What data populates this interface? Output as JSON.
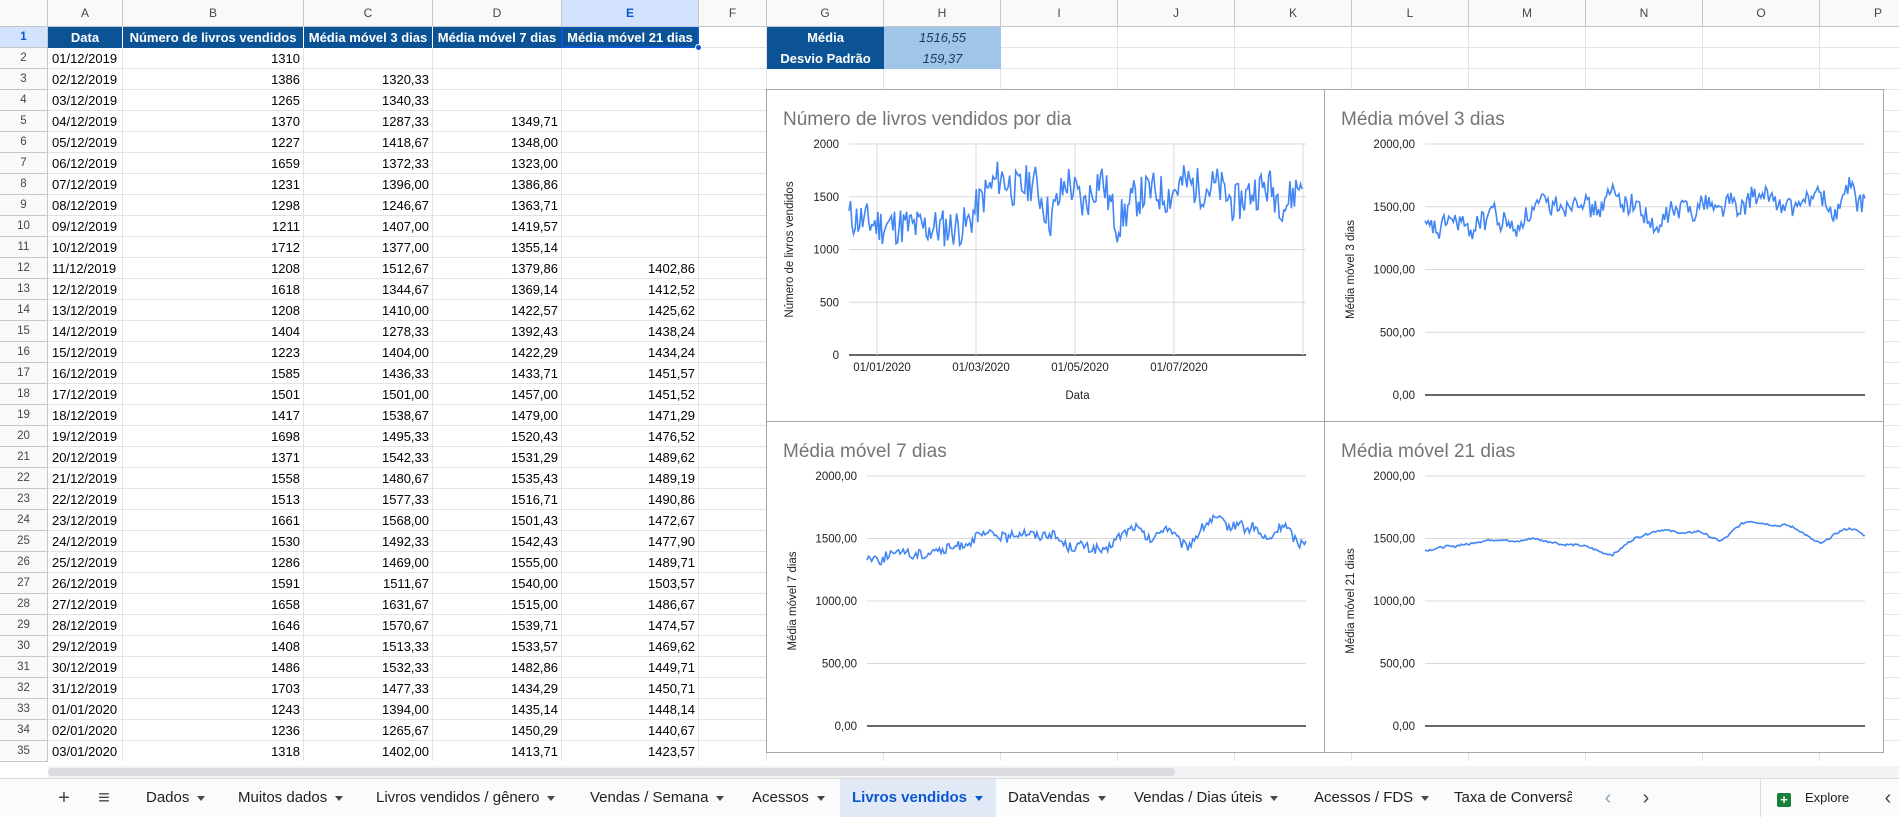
{
  "columns": [
    "A",
    "B",
    "C",
    "D",
    "E",
    "F",
    "G",
    "H",
    "I",
    "J",
    "K",
    "L",
    "M",
    "N",
    "O",
    "P"
  ],
  "selected_column": "E",
  "selected_row": "1",
  "headers": [
    "Data",
    "Número de livros vendidos",
    "Média móvel 3 dias",
    "Média móvel 7 dias",
    "Média móvel 21 dias"
  ],
  "rows": [
    [
      "01/12/2019",
      "1310",
      "",
      "",
      ""
    ],
    [
      "02/12/2019",
      "1386",
      "1320,33",
      "",
      ""
    ],
    [
      "03/12/2019",
      "1265",
      "1340,33",
      "",
      ""
    ],
    [
      "04/12/2019",
      "1370",
      "1287,33",
      "1349,71",
      ""
    ],
    [
      "05/12/2019",
      "1227",
      "1418,67",
      "1348,00",
      ""
    ],
    [
      "06/12/2019",
      "1659",
      "1372,33",
      "1323,00",
      ""
    ],
    [
      "07/12/2019",
      "1231",
      "1396,00",
      "1386,86",
      ""
    ],
    [
      "08/12/2019",
      "1298",
      "1246,67",
      "1363,71",
      ""
    ],
    [
      "09/12/2019",
      "1211",
      "1407,00",
      "1419,57",
      ""
    ],
    [
      "10/12/2019",
      "1712",
      "1377,00",
      "1355,14",
      ""
    ],
    [
      "11/12/2019",
      "1208",
      "1512,67",
      "1379,86",
      "1402,86"
    ],
    [
      "12/12/2019",
      "1618",
      "1344,67",
      "1369,14",
      "1412,52"
    ],
    [
      "13/12/2019",
      "1208",
      "1410,00",
      "1422,57",
      "1425,62"
    ],
    [
      "14/12/2019",
      "1404",
      "1278,33",
      "1392,43",
      "1438,24"
    ],
    [
      "15/12/2019",
      "1223",
      "1404,00",
      "1422,29",
      "1434,24"
    ],
    [
      "16/12/2019",
      "1585",
      "1436,33",
      "1433,71",
      "1451,57"
    ],
    [
      "17/12/2019",
      "1501",
      "1501,00",
      "1457,00",
      "1451,52"
    ],
    [
      "18/12/2019",
      "1417",
      "1538,67",
      "1479,00",
      "1471,29"
    ],
    [
      "19/12/2019",
      "1698",
      "1495,33",
      "1520,43",
      "1476,52"
    ],
    [
      "20/12/2019",
      "1371",
      "1542,33",
      "1531,29",
      "1489,62"
    ],
    [
      "21/12/2019",
      "1558",
      "1480,67",
      "1535,43",
      "1489,19"
    ],
    [
      "22/12/2019",
      "1513",
      "1577,33",
      "1516,71",
      "1490,86"
    ],
    [
      "23/12/2019",
      "1661",
      "1568,00",
      "1501,43",
      "1472,67"
    ],
    [
      "24/12/2019",
      "1530",
      "1492,33",
      "1542,43",
      "1477,90"
    ],
    [
      "25/12/2019",
      "1286",
      "1469,00",
      "1555,00",
      "1489,71"
    ],
    [
      "26/12/2019",
      "1591",
      "1511,67",
      "1540,00",
      "1503,57"
    ],
    [
      "27/12/2019",
      "1658",
      "1631,67",
      "1515,00",
      "1486,67"
    ],
    [
      "28/12/2019",
      "1646",
      "1570,67",
      "1539,71",
      "1474,57"
    ],
    [
      "29/12/2019",
      "1408",
      "1513,33",
      "1533,57",
      "1469,62"
    ],
    [
      "30/12/2019",
      "1486",
      "1532,33",
      "1482,86",
      "1449,71"
    ],
    [
      "31/12/2019",
      "1703",
      "1477,33",
      "1434,29",
      "1450,71"
    ],
    [
      "01/01/2020",
      "1243",
      "1394,00",
      "1435,14",
      "1448,14"
    ],
    [
      "02/01/2020",
      "1236",
      "1265,67",
      "1450,29",
      "1440,67"
    ],
    [
      "03/01/2020",
      "1318",
      "1402,00",
      "1413,71",
      "1423,57"
    ]
  ],
  "stats": {
    "media_label": "Média",
    "media_value": "1516,55",
    "desvio_label": "Desvio Padrão",
    "desvio_value": "159,37"
  },
  "line_color": "#4285f4",
  "chart_data": [
    {
      "type": "line",
      "title": "Número de livros vendidos por dia",
      "xlabel": "Data",
      "ylabel": "Número de livros vendidos",
      "x_tick_labels": [
        "01/01/2020",
        "01/03/2020",
        "01/05/2020",
        "01/07/2020"
      ],
      "y_tick_labels": [
        "2000",
        "1500",
        "1000",
        "500",
        "0"
      ],
      "ylim": [
        0,
        2000
      ],
      "x": [
        "01/12/2019",
        "03/12/2019",
        "05/12/2019",
        "07/12/2019",
        "09/12/2019",
        "11/12/2019",
        "13/12/2019",
        "15/12/2019",
        "17/12/2019",
        "19/12/2019",
        "21/12/2019",
        "23/12/2019",
        "25/12/2019",
        "27/12/2019",
        "29/12/2019",
        "31/12/2019",
        "02/01/2020",
        "01/02/2020",
        "01/03/2020",
        "01/04/2020",
        "01/05/2020",
        "01/06/2020",
        "01/07/2020",
        "01/08/2020",
        "15/08/2020",
        "30/08/2020",
        "15/09/2020",
        "24/09/2020"
      ],
      "values": [
        1310,
        1265,
        1227,
        1231,
        1211,
        1208,
        1208,
        1223,
        1501,
        1698,
        1558,
        1661,
        1286,
        1658,
        1408,
        1703,
        1236,
        1480,
        1560,
        1510,
        1640,
        1580,
        1600,
        1420,
        1550,
        1600,
        1420,
        1650
      ]
    },
    {
      "type": "line",
      "title": "Média móvel 3 dias",
      "xlabel": "",
      "ylabel": "Média móvel 3 dias",
      "y_tick_labels": [
        "2000,00",
        "1500,00",
        "1000,00",
        "500,00",
        "0,00"
      ],
      "ylim": [
        0,
        2000
      ],
      "values": [
        1320,
        1340,
        1287,
        1419,
        1372,
        1396,
        1247,
        1407,
        1377,
        1513,
        1345,
        1410,
        1278,
        1404,
        1436,
        1501,
        1539,
        1495,
        1542,
        1481,
        1577,
        1568,
        1492,
        1469,
        1512,
        1632,
        1571,
        1513,
        1532,
        1477,
        1394,
        1266,
        1402,
        1480,
        1450,
        1530,
        1460,
        1520,
        1560,
        1470,
        1500,
        1580,
        1430,
        1520,
        1610,
        1540,
        1600,
        1560,
        1480,
        1520,
        1450,
        1600,
        1560,
        1620,
        1500,
        1420,
        1560,
        1680,
        1530,
        1520
      ]
    },
    {
      "type": "line",
      "title": "Média móvel 7 dias",
      "xlabel": "",
      "ylabel": "Média móvel 7 dias",
      "y_tick_labels": [
        "2000,00",
        "1500,00",
        "1000,00",
        "500,00",
        "0,00"
      ],
      "ylim": [
        0,
        2000
      ],
      "values": [
        1350,
        1348,
        1323,
        1387,
        1364,
        1420,
        1355,
        1380,
        1369,
        1423,
        1392,
        1422,
        1434,
        1457,
        1479,
        1520,
        1531,
        1535,
        1517,
        1501,
        1542,
        1555,
        1540,
        1515,
        1540,
        1534,
        1483,
        1434,
        1435,
        1450,
        1414,
        1420,
        1380,
        1470,
        1520,
        1560,
        1600,
        1540,
        1480,
        1520,
        1600,
        1560,
        1470,
        1430,
        1500,
        1580,
        1640,
        1660,
        1620,
        1580,
        1640,
        1560,
        1600,
        1520,
        1480,
        1560,
        1620,
        1540,
        1450,
        1500
      ]
    },
    {
      "type": "line",
      "title": "Média móvel 21 dias",
      "xlabel": "",
      "ylabel": "Média móvel 21 dias",
      "y_tick_labels": [
        "2000,00",
        "1500,00",
        "1000,00",
        "500,00",
        "0,00"
      ],
      "ylim": [
        0,
        2000
      ],
      "values": [
        1403,
        1413,
        1426,
        1438,
        1434,
        1452,
        1452,
        1471,
        1477,
        1490,
        1489,
        1491,
        1473,
        1478,
        1490,
        1504,
        1487,
        1475,
        1470,
        1450,
        1451,
        1448,
        1441,
        1424,
        1400,
        1380,
        1370,
        1410,
        1460,
        1500,
        1520,
        1540,
        1560,
        1570,
        1560,
        1550,
        1540,
        1550,
        1560,
        1530,
        1500,
        1480,
        1520,
        1580,
        1620,
        1640,
        1630,
        1620,
        1610,
        1600,
        1610,
        1590,
        1560,
        1520,
        1480,
        1460,
        1500,
        1540,
        1570,
        1580,
        1560,
        1520
      ]
    }
  ],
  "sheet_tabs": [
    "Dados",
    "Muitos dados",
    "Livros vendidos / gênero",
    "Vendas / Semana",
    "Acessos",
    "Livros vendidos",
    "DataVendas",
    "Vendas / Dias úteis",
    "Acessos / FDS",
    "Taxa de Conversão"
  ],
  "active_tab": "Livros vendidos",
  "explore_label": "Explore",
  "add_sheet_glyph": "+",
  "all_sheets_glyph": "≡",
  "prev_glyph": "‹",
  "next_glyph": "›",
  "side_glyph": "‹"
}
